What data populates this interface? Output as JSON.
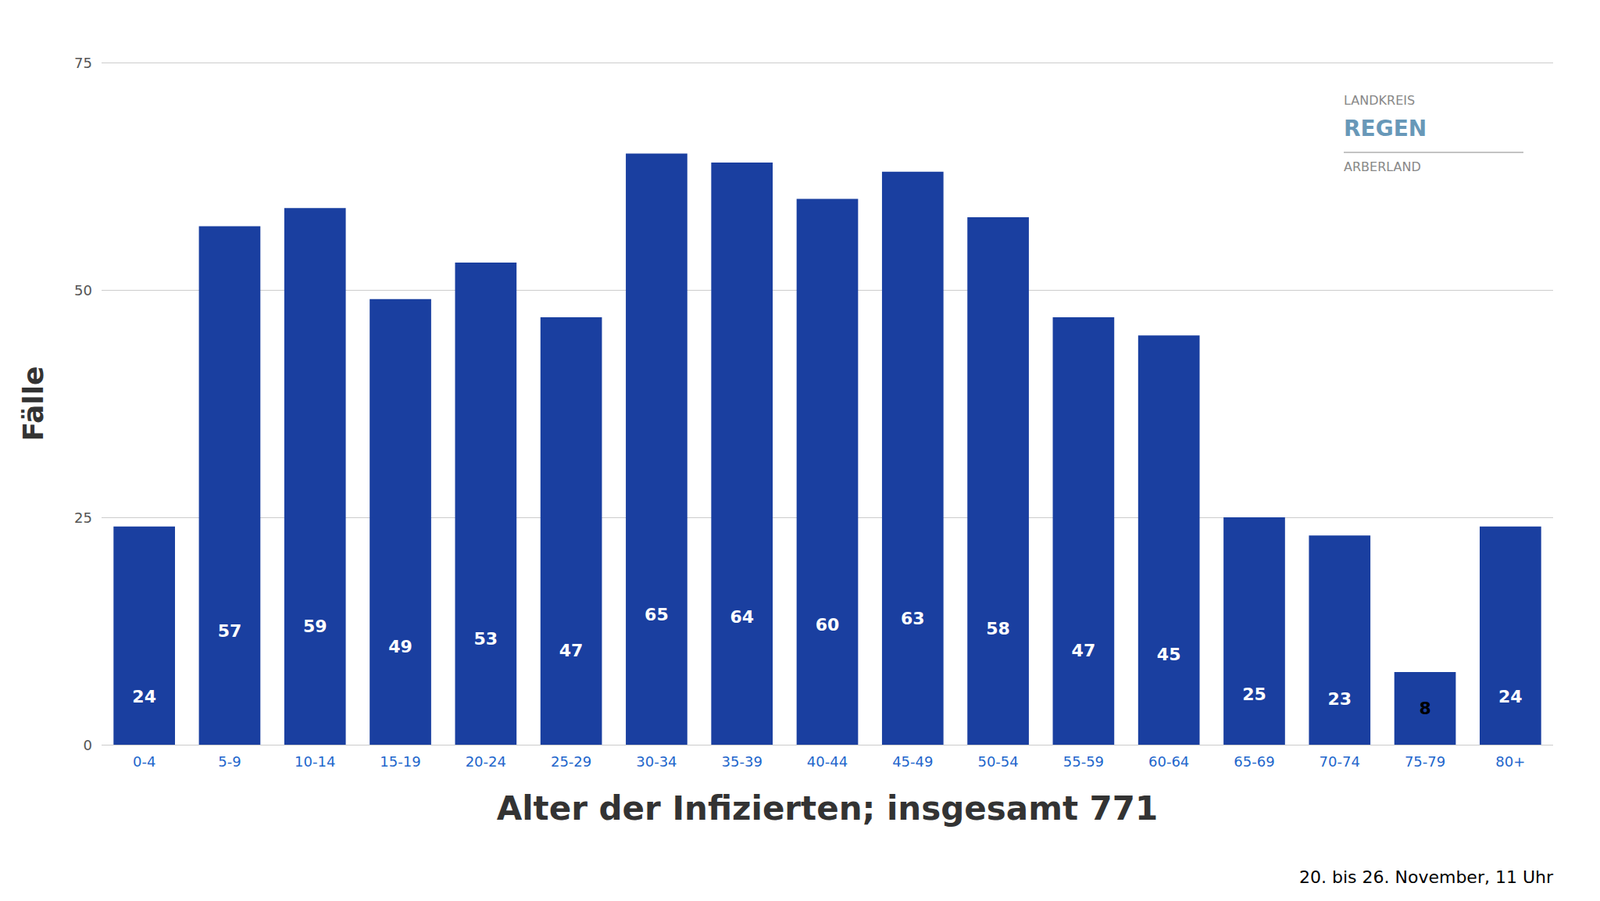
{
  "chart_data": {
    "type": "bar",
    "xlabel": "Alter der Infizierten; insgesamt 771",
    "ylabel": "Fälle",
    "subtitle": "20. bis 26. November, 11 Uhr",
    "annotations": [
      "LANDKREIS",
      "REGEN",
      "ARBERLAND"
    ],
    "categories": [
      "0-4",
      "5-9",
      "10-14",
      "15-19",
      "20-24",
      "25-29",
      "30-34",
      "35-39",
      "40-44",
      "45-49",
      "50-54",
      "55-59",
      "60-64",
      "65-69",
      "70-74",
      "75-79",
      "80+"
    ],
    "values": [
      24,
      57,
      59,
      49,
      53,
      47,
      65,
      64,
      60,
      63,
      58,
      47,
      45,
      25,
      23,
      8,
      24
    ],
    "color": "#1a3fa0",
    "ylim": [
      0,
      75
    ],
    "yticks": [
      0,
      25,
      50,
      75
    ],
    "grid": true,
    "data_labels": true
  }
}
